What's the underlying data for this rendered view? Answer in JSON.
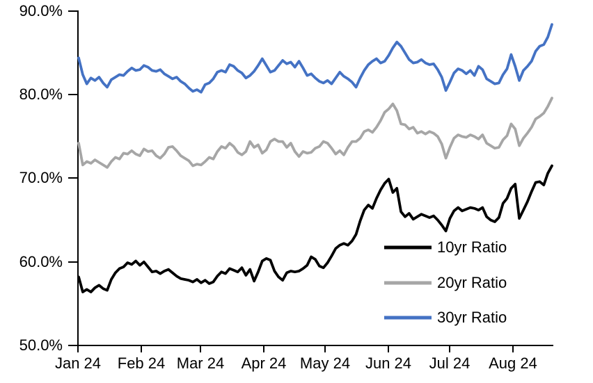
{
  "chart_data": {
    "type": "line",
    "title": "",
    "grid": false,
    "background": "#ffffff",
    "axis_color": "#000000",
    "legend_position": "inside-lower-right",
    "x_axis": {
      "tick_labels": [
        "Jan 24",
        "Feb 24",
        "Mar 24",
        "Apr 24",
        "May 24",
        "Jun 24",
        "Jul 24",
        "Aug 24"
      ],
      "unit": "month ticks, daily data"
    },
    "y_axis": {
      "tick_labels": [
        "90.0%",
        "80.0%",
        "70.0%",
        "60.0%",
        "50.0%"
      ],
      "tick_values": [
        90,
        80,
        70,
        60,
        50
      ],
      "min": 50,
      "max": 90,
      "unit": "percent"
    },
    "x_max_day": 232,
    "x_days": [
      0,
      2,
      4,
      6,
      8,
      10,
      12,
      14,
      16,
      18,
      20,
      22,
      24,
      26,
      28,
      30,
      32,
      34,
      36,
      38,
      40,
      42,
      44,
      46,
      48,
      50,
      52,
      54,
      56,
      58,
      60,
      62,
      64,
      66,
      68,
      70,
      72,
      74,
      76,
      78,
      80,
      82,
      84,
      86,
      88,
      90,
      92,
      94,
      96,
      98,
      100,
      102,
      104,
      106,
      108,
      110,
      112,
      114,
      116,
      118,
      120,
      122,
      124,
      126,
      128,
      130,
      132,
      134,
      136,
      138,
      140,
      142,
      144,
      146,
      148,
      150,
      152,
      154,
      156,
      158,
      160,
      162,
      164,
      166,
      168,
      170,
      172,
      174,
      176,
      178,
      180,
      182,
      184,
      186,
      188,
      190,
      192,
      194,
      196,
      198,
      200,
      202,
      204,
      206,
      208,
      210,
      212,
      214,
      216,
      218,
      220,
      222,
      224,
      226,
      228,
      230,
      232
    ],
    "series": [
      {
        "id": "10yr",
        "name": "10yr Ratio",
        "color": "#000000",
        "values": [
          58.2,
          56.4,
          56.7,
          56.4,
          56.9,
          57.2,
          56.8,
          56.6,
          57.9,
          58.7,
          59.2,
          59.4,
          59.9,
          59.7,
          60.1,
          59.6,
          60.0,
          59.4,
          58.8,
          58.9,
          58.6,
          58.9,
          59.1,
          58.7,
          58.3,
          58.0,
          57.9,
          57.8,
          57.6,
          57.9,
          57.5,
          57.8,
          57.4,
          57.6,
          58.3,
          58.8,
          58.6,
          59.2,
          59.0,
          58.8,
          59.3,
          58.4,
          59.1,
          57.7,
          58.8,
          60.1,
          60.4,
          60.2,
          58.9,
          58.2,
          57.8,
          58.7,
          58.9,
          58.8,
          58.9,
          59.2,
          59.6,
          60.6,
          60.3,
          59.5,
          59.3,
          59.9,
          60.7,
          61.6,
          62.0,
          62.2,
          62.0,
          62.5,
          63.3,
          64.9,
          66.2,
          66.8,
          66.4,
          67.6,
          68.6,
          69.4,
          69.9,
          68.3,
          68.8,
          66.0,
          65.4,
          65.8,
          65.1,
          65.4,
          65.7,
          65.5,
          65.3,
          65.5,
          65.0,
          64.4,
          63.7,
          65.2,
          66.1,
          66.5,
          66.1,
          66.3,
          66.5,
          66.4,
          66.2,
          66.5,
          65.4,
          65.0,
          64.8,
          65.3,
          67.0,
          67.6,
          68.8,
          69.3,
          65.2,
          66.2,
          67.2,
          68.4,
          69.5,
          69.6,
          69.2,
          70.6,
          71.5
        ]
      },
      {
        "id": "20yr",
        "name": "20yr Ratio",
        "color": "#A6A6A6",
        "values": [
          74.2,
          71.6,
          72.0,
          71.8,
          72.2,
          71.9,
          71.6,
          71.3,
          72.0,
          72.5,
          72.3,
          73.0,
          72.9,
          73.3,
          72.9,
          72.7,
          73.5,
          73.2,
          73.3,
          72.7,
          72.4,
          72.9,
          73.7,
          73.8,
          73.3,
          72.7,
          72.4,
          72.1,
          71.5,
          71.7,
          71.6,
          72.0,
          72.5,
          72.3,
          73.2,
          73.8,
          73.6,
          74.2,
          73.8,
          73.1,
          72.8,
          73.2,
          74.4,
          73.7,
          74.0,
          73.0,
          73.4,
          74.4,
          74.7,
          74.4,
          74.4,
          73.7,
          74.2,
          73.2,
          72.6,
          73.2,
          73.0,
          73.1,
          73.6,
          73.8,
          74.4,
          74.2,
          73.6,
          72.9,
          73.3,
          72.8,
          73.7,
          74.4,
          74.4,
          74.8,
          75.6,
          75.8,
          75.5,
          76.1,
          76.9,
          77.9,
          78.3,
          78.9,
          78.1,
          76.5,
          76.4,
          75.9,
          76.1,
          75.4,
          75.6,
          75.3,
          75.6,
          75.4,
          75.0,
          74.1,
          72.4,
          73.7,
          74.8,
          75.2,
          75.0,
          74.9,
          75.2,
          75.0,
          74.7,
          75.2,
          74.2,
          73.9,
          73.6,
          73.7,
          74.6,
          75.1,
          76.5,
          75.9,
          73.9,
          74.8,
          75.4,
          76.1,
          77.1,
          77.4,
          77.8,
          78.6,
          79.6
        ]
      },
      {
        "id": "30yr",
        "name": "30yr Ratio",
        "color": "#4472C4",
        "values": [
          84.4,
          82.4,
          81.3,
          82.0,
          81.7,
          82.1,
          81.4,
          80.9,
          81.8,
          82.1,
          82.4,
          82.3,
          82.8,
          83.2,
          82.9,
          83.0,
          83.5,
          83.3,
          82.9,
          82.8,
          83.0,
          82.5,
          82.2,
          81.9,
          82.1,
          81.6,
          81.3,
          80.8,
          80.4,
          80.6,
          80.3,
          81.2,
          81.4,
          81.9,
          82.7,
          82.9,
          82.7,
          83.6,
          83.4,
          82.9,
          82.6,
          82.0,
          82.3,
          82.8,
          83.5,
          84.3,
          83.5,
          82.7,
          82.9,
          83.5,
          84.1,
          83.7,
          83.9,
          83.3,
          84.0,
          83.2,
          82.3,
          82.5,
          82.0,
          81.6,
          81.4,
          81.7,
          81.3,
          82.0,
          82.7,
          82.2,
          81.9,
          81.5,
          80.9,
          82.0,
          82.9,
          83.6,
          84.0,
          84.3,
          83.8,
          84.0,
          84.7,
          85.6,
          86.3,
          85.8,
          85.0,
          84.2,
          83.8,
          83.9,
          84.2,
          83.8,
          83.6,
          83.7,
          83.0,
          82.1,
          80.5,
          81.5,
          82.6,
          83.1,
          82.9,
          82.5,
          82.9,
          82.3,
          83.4,
          83.0,
          81.9,
          81.6,
          81.3,
          81.4,
          82.4,
          83.1,
          84.8,
          83.4,
          81.7,
          82.9,
          83.4,
          84.0,
          85.2,
          85.8,
          86.0,
          86.9,
          88.4
        ]
      }
    ]
  }
}
